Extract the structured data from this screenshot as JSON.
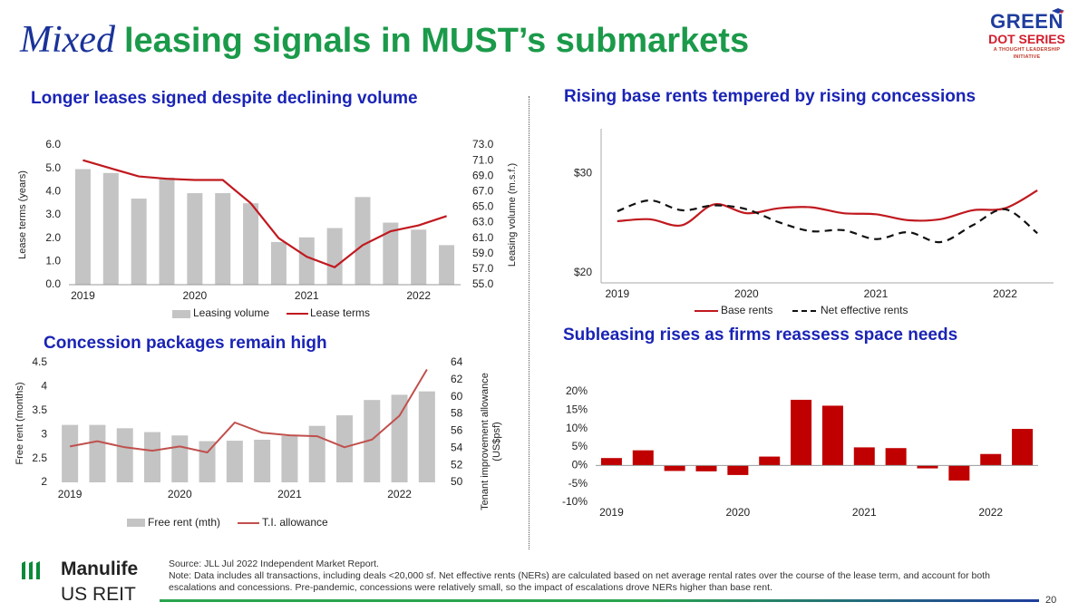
{
  "header": {
    "title_em": "Mixed",
    "title_rest": "leasing signals in MUST’s submarkets"
  },
  "logo": {
    "line1": "GREEN",
    "line2": "DOT SERIES",
    "line3": "A THOUGHT LEADERSHIP INITIATIVE"
  },
  "panels": {
    "p1": {
      "title": "Longer leases signed despite declining volume"
    },
    "p2": {
      "title": "Rising base rents tempered by rising concessions"
    },
    "p3": {
      "title": "Concession packages remain high"
    },
    "p4": {
      "title": "Subleasing rises as firms reassess space needs"
    }
  },
  "footer": {
    "brand": "Manulife",
    "brand2": "US REIT",
    "source": "Source: JLL Jul 2022 Independent Market Report.",
    "note": "Note: Data includes all transactions, including deals <20,000 sf. Net effective rents (NERs) are calculated based on net average rental rates over the course of the lease term, and account for both escalations and concessions. Pre-pandemic, concessions were relatively small, so the impact of escalations drove NERs higher than base rent.",
    "page": "20"
  },
  "colors": {
    "bar_gray": "#c4c4c4",
    "line_red": "#c0191f",
    "bar_red": "#c00000",
    "green": "#1b9a4a",
    "blue": "#1a24b5"
  },
  "chart_data": [
    {
      "type": "bar",
      "x": [
        "2019 Q1",
        "2019 Q2",
        "2019 Q3",
        "2019 Q4",
        "2020 Q1",
        "2020 Q2",
        "2020 Q3",
        "2020 Q4",
        "2021 Q1",
        "2021 Q2",
        "2021 Q3",
        "2021 Q4",
        "2022 Q1",
        "2022 Q2"
      ],
      "tick_labels": [
        "2019",
        "2020",
        "2021",
        "2022"
      ],
      "series": [
        {
          "name": "Leasing volume",
          "kind": "bar",
          "axis": "right",
          "values": [
            69.9,
            69.4,
            66.1,
            68.8,
            66.8,
            66.8,
            65.5,
            60.5,
            61.1,
            62.3,
            66.3,
            63.0,
            62.1,
            60.1
          ]
        },
        {
          "name": "Lease terms",
          "kind": "line",
          "axis": "left",
          "values": [
            5.35,
            5.0,
            4.65,
            4.55,
            4.5,
            4.5,
            3.5,
            2.0,
            1.2,
            0.75,
            1.7,
            2.3,
            2.55,
            2.95
          ]
        }
      ],
      "ylabel": "Lease terms (years)",
      "ylim": [
        0,
        6
      ],
      "yticks": [
        "0.0",
        "1.0",
        "2.0",
        "3.0",
        "4.0",
        "5.0",
        "6.0"
      ],
      "y2label": "Leasing volume (m.s.f.)",
      "y2lim": [
        55,
        73
      ],
      "y2ticks": [
        "55.0",
        "57.0",
        "59.0",
        "61.0",
        "63.0",
        "65.0",
        "67.0",
        "69.0",
        "71.0",
        "73.0"
      ],
      "legend": "bottom"
    },
    {
      "type": "line",
      "x": [
        "2019 Q1",
        "2019 Q2",
        "2019 Q3",
        "2019 Q4",
        "2020 Q1",
        "2020 Q2",
        "2020 Q3",
        "2020 Q4",
        "2021 Q1",
        "2021 Q2",
        "2021 Q3",
        "2021 Q4",
        "2022 Q1",
        "2022 Q2"
      ],
      "tick_labels": [
        "2019",
        "2020",
        "2021",
        "2022"
      ],
      "series": [
        {
          "name": "Base rents",
          "values": [
            25.2,
            25.4,
            24.8,
            26.9,
            26.0,
            26.5,
            26.6,
            26.0,
            25.9,
            25.3,
            25.4,
            26.3,
            26.5,
            28.3
          ]
        },
        {
          "name": "Net effective rents",
          "values": [
            26.2,
            27.3,
            26.3,
            26.8,
            26.4,
            25.1,
            24.2,
            24.3,
            23.4,
            24.1,
            23.1,
            24.8,
            26.4,
            24.0
          ]
        }
      ],
      "yticks": [
        "$20",
        "$30"
      ],
      "ylim": [
        19,
        34.5
      ],
      "legend": "bottom"
    },
    {
      "type": "bar",
      "x": [
        "2019 Q1",
        "2019 Q2",
        "2019 Q3",
        "2019 Q4",
        "2020 Q1",
        "2020 Q2",
        "2020 Q3",
        "2020 Q4",
        "2021 Q1",
        "2021 Q2",
        "2021 Q3",
        "2021 Q4",
        "2022 Q1",
        "2022 Q2"
      ],
      "tick_labels": [
        "2019",
        "2020",
        "2021",
        "2022"
      ],
      "series": [
        {
          "name": "Free rent (mth)",
          "kind": "bar",
          "axis": "left",
          "values": [
            3.2,
            3.2,
            3.13,
            3.05,
            2.98,
            2.86,
            2.87,
            2.89,
            2.97,
            3.18,
            3.4,
            3.72,
            3.83,
            3.9
          ]
        },
        {
          "name": "T.I. allowance",
          "kind": "line",
          "axis": "right",
          "values": [
            54.2,
            54.8,
            54.1,
            53.7,
            54.2,
            53.5,
            57.0,
            55.8,
            55.5,
            55.4,
            54.1,
            55.0,
            57.8,
            63.2
          ]
        }
      ],
      "ylabel": "Free rent (months)",
      "ylim": [
        2,
        4.5
      ],
      "yticks": [
        "2",
        "2.5",
        "3",
        "3.5",
        "4",
        "4.5"
      ],
      "y2label": "Tenant improvement allowance (US$psf)",
      "y2lim": [
        50,
        64
      ],
      "y2ticks": [
        "50",
        "52",
        "54",
        "56",
        "58",
        "60",
        "62",
        "64"
      ],
      "legend": "bottom"
    },
    {
      "type": "bar",
      "x": [
        "2019 Q1",
        "2019 Q2",
        "2019 Q3",
        "2019 Q4",
        "2020 Q1",
        "2020 Q2",
        "2020 Q3",
        "2020 Q4",
        "2021 Q1",
        "2021 Q2",
        "2021 Q3",
        "2021 Q4",
        "2022 Q1",
        "2022 Q2"
      ],
      "tick_labels": [
        "2019",
        "2020",
        "2021",
        "2022"
      ],
      "values": [
        2.0,
        4.1,
        -1.5,
        -1.6,
        -2.6,
        2.4,
        17.8,
        16.2,
        4.9,
        4.7,
        -0.8,
        -4.1,
        3.1,
        9.9
      ],
      "ylim": [
        -10,
        20
      ],
      "yticks": [
        "-10%",
        "-5%",
        "0%",
        "5%",
        "10%",
        "15%",
        "20%"
      ]
    }
  ]
}
